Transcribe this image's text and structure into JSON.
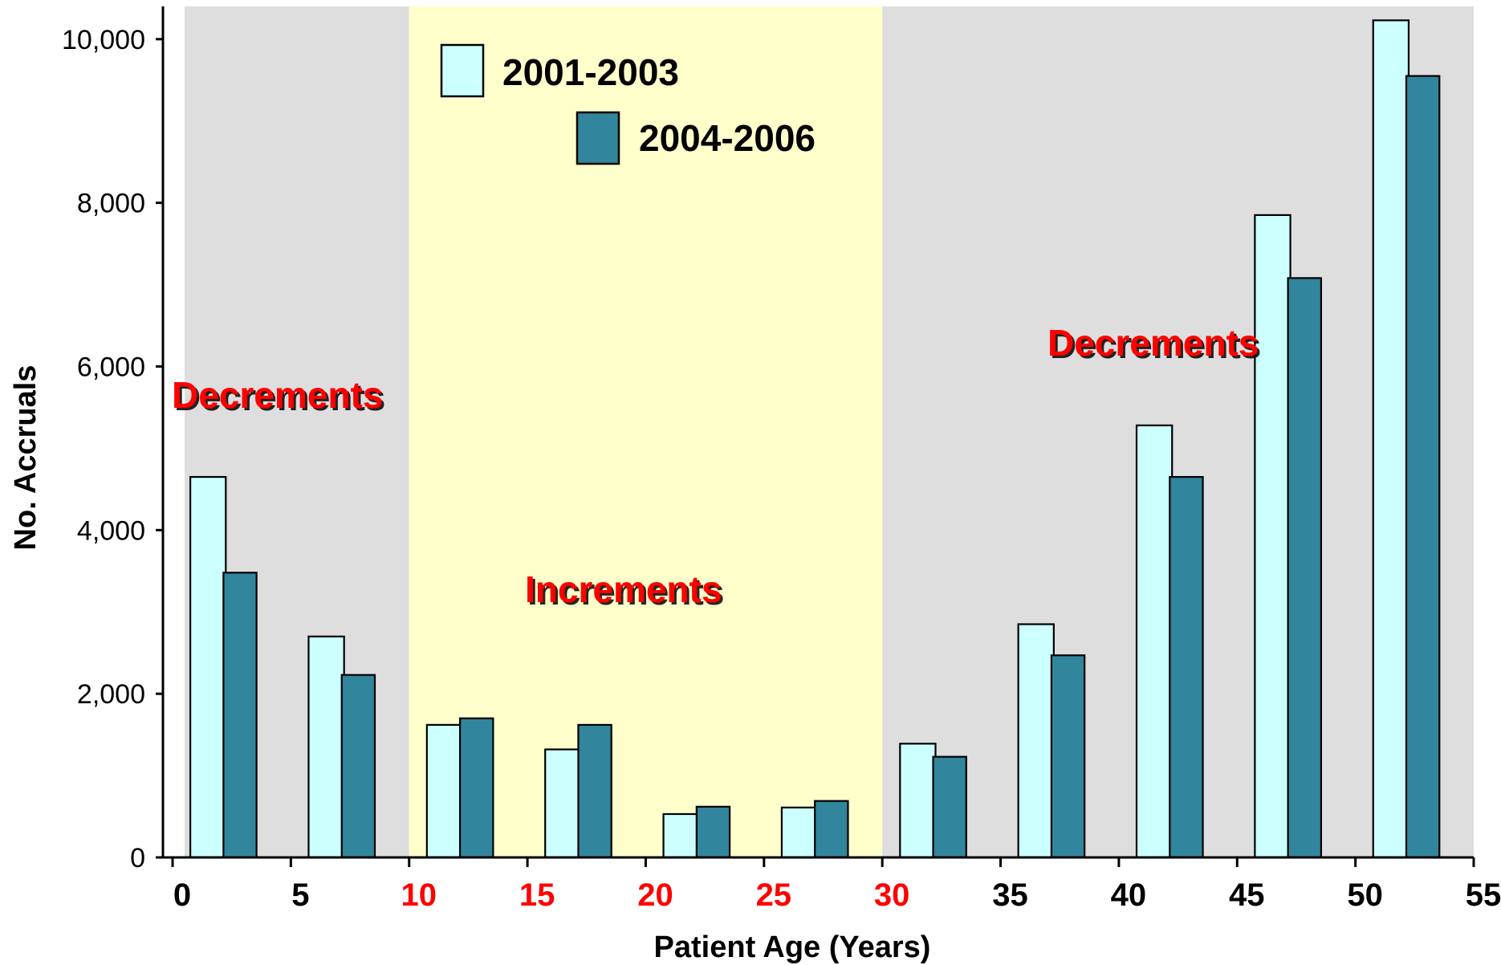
{
  "chart_data": {
    "type": "bar",
    "xlabel": "Patient Age (Years)",
    "ylabel": "No. Accruals",
    "xlim": [
      0,
      55
    ],
    "ylim": [
      0,
      10400
    ],
    "x_ticks": [
      "0",
      "5",
      "10",
      "15",
      "20",
      "25",
      "30",
      "35",
      "40",
      "45",
      "50",
      "55"
    ],
    "x_tick_values": [
      0,
      5,
      10,
      15,
      20,
      25,
      30,
      35,
      40,
      45,
      50,
      55
    ],
    "highlighted_x_ticks": [
      "10",
      "15",
      "20",
      "25",
      "30"
    ],
    "y_ticks": [
      "0",
      "2,000",
      "4,000",
      "6,000",
      "8,000",
      "10,000"
    ],
    "y_tick_values": [
      0,
      2000,
      4000,
      6000,
      8000,
      10000
    ],
    "categories": [
      "0-4",
      "5-9",
      "10-14",
      "15-19",
      "20-24",
      "25-29",
      "30-34",
      "35-39",
      "40-44",
      "45-49",
      "50-54"
    ],
    "category_start": [
      0,
      5,
      10,
      15,
      20,
      25,
      30,
      35,
      40,
      45,
      50
    ],
    "series": [
      {
        "name": "2001-2003",
        "color": "#ccffff",
        "values": [
          4650,
          2700,
          1620,
          1320,
          530,
          610,
          1390,
          2850,
          5280,
          7850,
          10230
        ]
      },
      {
        "name": "2004-2006",
        "color": "#31859c",
        "values": [
          3480,
          2230,
          1700,
          1620,
          620,
          690,
          1230,
          2470,
          4650,
          7080,
          9550
        ]
      }
    ],
    "regions": [
      {
        "from": 0,
        "to": 10,
        "color": "#dedede",
        "label": "Decrements"
      },
      {
        "from": 10,
        "to": 30,
        "color": "#ffffcc",
        "label": "Increments"
      },
      {
        "from": 30,
        "to": 55,
        "color": "#dedede",
        "label": "Decrements"
      }
    ],
    "legend_position": "top-left",
    "grid": false
  },
  "colors": {
    "region_gray": "#dedede",
    "region_yellow": "#ffffcc",
    "annotation_red": "#ff0000",
    "tick_red": "#ff0000"
  }
}
